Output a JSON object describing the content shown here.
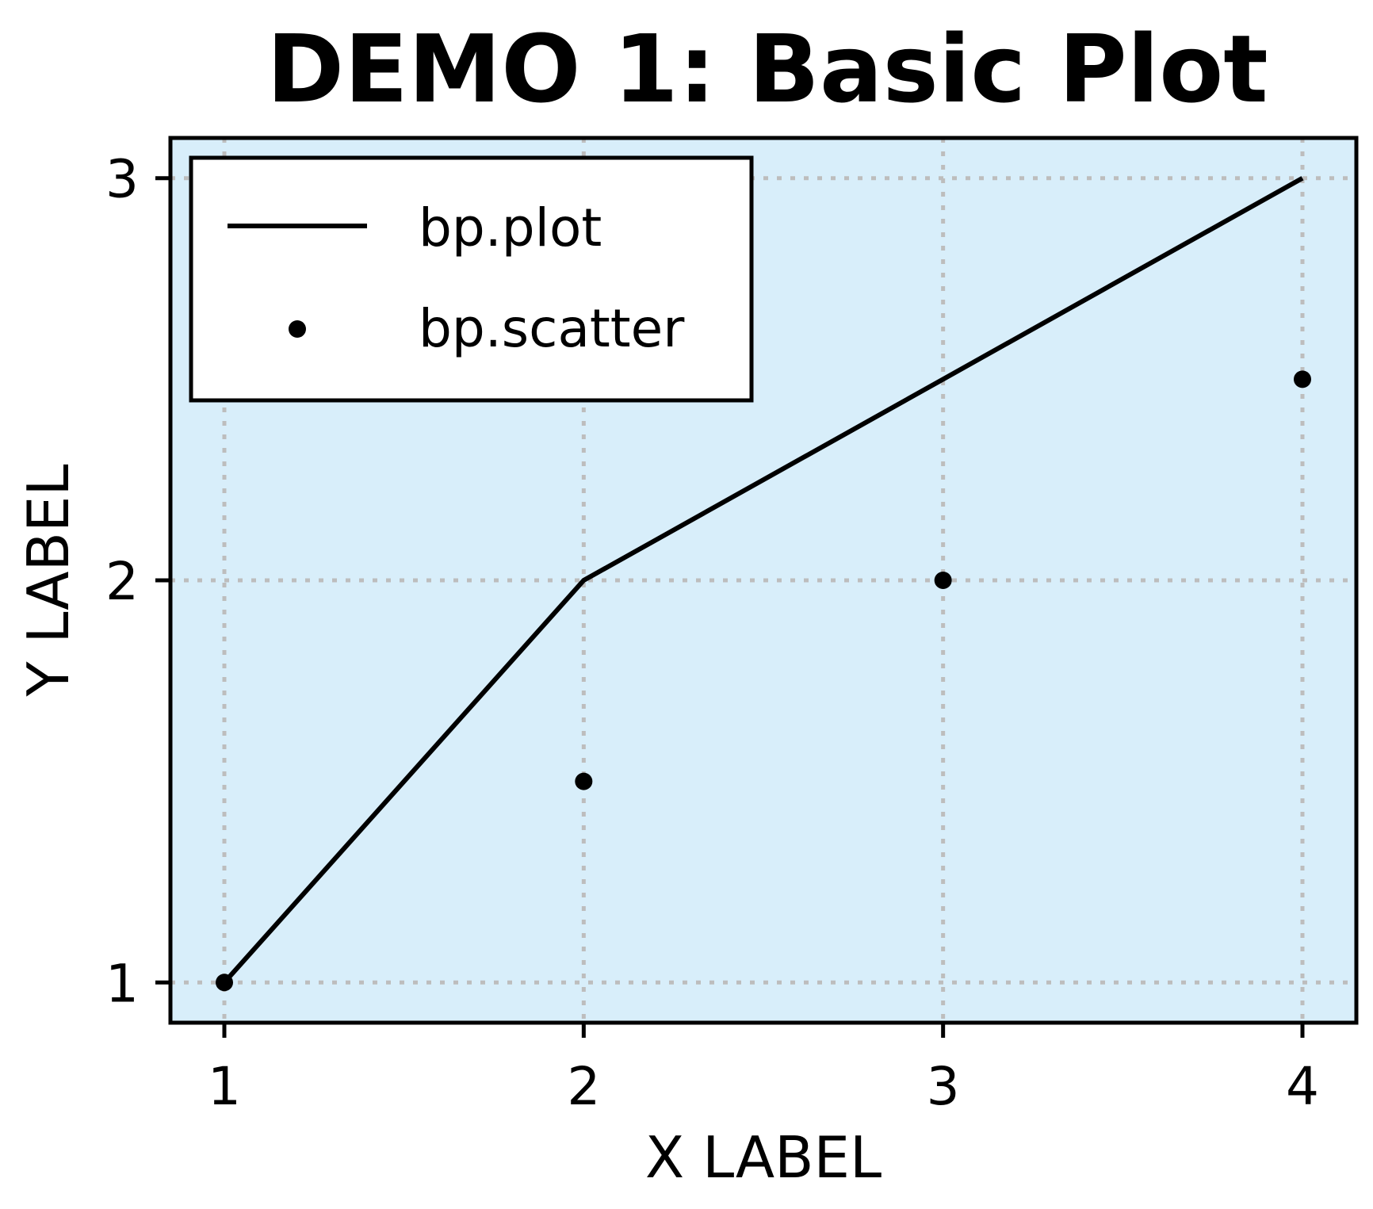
{
  "chart_data": {
    "type": "line",
    "title": "DEMO 1: Basic Plot",
    "xlabel": "X LABEL",
    "ylabel": "Y LABEL",
    "xlim": [
      0.85,
      4.15
    ],
    "ylim": [
      0.9,
      3.1
    ],
    "xticks": [
      1,
      2,
      3,
      4
    ],
    "yticks": [
      1,
      2,
      3
    ],
    "grid": true,
    "legend_position": "top-left",
    "background_color": "#d8eefa",
    "series": [
      {
        "name": "bp.plot",
        "kind": "line",
        "x": [
          1,
          2,
          3,
          4
        ],
        "y": [
          1,
          2,
          2.5,
          3
        ],
        "color": "#000000"
      },
      {
        "name": "bp.scatter",
        "kind": "scatter",
        "x": [
          1,
          2,
          3,
          4
        ],
        "y": [
          1,
          1.5,
          2,
          2.5
        ],
        "color": "#000000"
      }
    ]
  }
}
